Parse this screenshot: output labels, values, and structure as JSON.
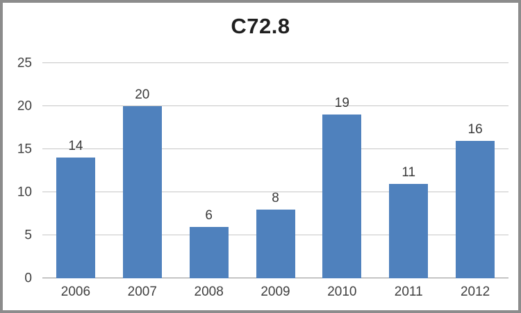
{
  "chart_data": {
    "type": "bar",
    "title": "C72.8",
    "categories": [
      "2006",
      "2007",
      "2008",
      "2009",
      "2010",
      "2011",
      "2012"
    ],
    "values": [
      14,
      20,
      6,
      8,
      19,
      11,
      16
    ],
    "yticks": [
      0,
      5,
      10,
      15,
      20,
      25
    ],
    "ylim": [
      0,
      25
    ],
    "xlabel": "",
    "ylabel": "",
    "grid": "horizontal",
    "legend": "none",
    "data_labels": "above-bars",
    "colors": {
      "bar": "#4f81bd",
      "gridline": "#c6c6c6",
      "axis_line": "#8e8e8e",
      "tick_label": "#3f3f3f",
      "title": "#1f1f1f",
      "frame_border": "#8c8c8c",
      "background": "#ffffff"
    }
  }
}
